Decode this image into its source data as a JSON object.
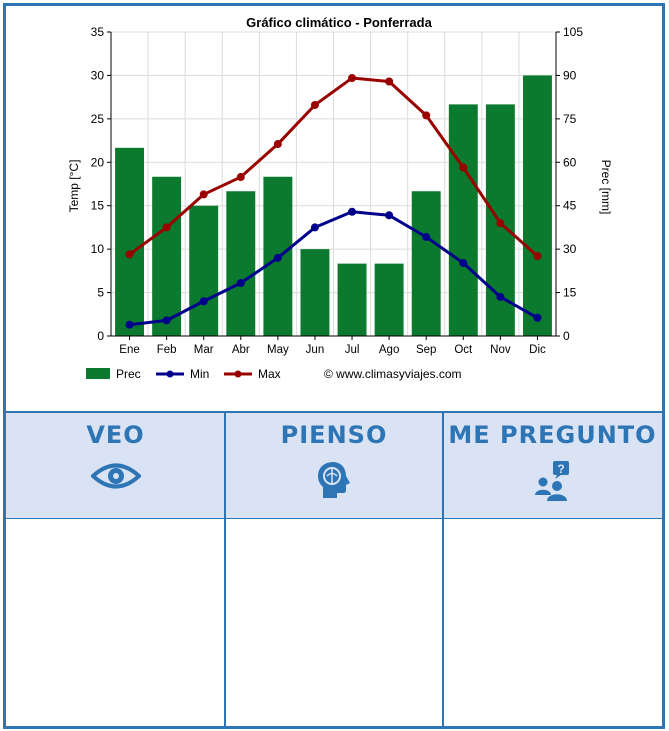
{
  "chart_data": {
    "type": "bar+line",
    "title": "Gráfico climático - Ponferrada",
    "categories": [
      "Ene",
      "Feb",
      "Mar",
      "Abr",
      "May",
      "Jun",
      "Jul",
      "Ago",
      "Sep",
      "Oct",
      "Nov",
      "Dic"
    ],
    "y_left": {
      "label": "Temp [°C]",
      "range": [
        0,
        35
      ],
      "ticks": [
        0,
        5,
        10,
        15,
        20,
        25,
        30,
        35
      ]
    },
    "y_right": {
      "label": "Prec [mm]",
      "range": [
        0,
        105
      ],
      "ticks": [
        0,
        15,
        30,
        45,
        60,
        75,
        90,
        105
      ]
    },
    "series": [
      {
        "name": "Prec",
        "kind": "bar",
        "axis": "right",
        "color": "#0b7a2e",
        "values": [
          65,
          55,
          45,
          50,
          55,
          30,
          25,
          25,
          50,
          80,
          80,
          90
        ]
      },
      {
        "name": "Min",
        "kind": "line",
        "axis": "left",
        "color": "#00008b",
        "values": [
          1.3,
          1.8,
          4.0,
          6.1,
          9.0,
          12.5,
          14.3,
          13.9,
          11.4,
          8.4,
          4.5,
          2.1
        ]
      },
      {
        "name": "Max",
        "kind": "line",
        "axis": "left",
        "color": "#990000",
        "values": [
          9.4,
          12.5,
          16.3,
          18.3,
          22.1,
          26.6,
          29.7,
          29.3,
          25.4,
          19.4,
          13.0,
          9.2
        ]
      }
    ],
    "grid": true,
    "legend": "bottom-left",
    "watermark": "© www.climasyviajes.com"
  },
  "table": {
    "columns": [
      {
        "label": "VEO",
        "icon": "eye-icon"
      },
      {
        "label": "PIENSO",
        "icon": "brain-head-icon"
      },
      {
        "label": "ME PREGUNTO",
        "icon": "question-people-icon"
      }
    ]
  }
}
